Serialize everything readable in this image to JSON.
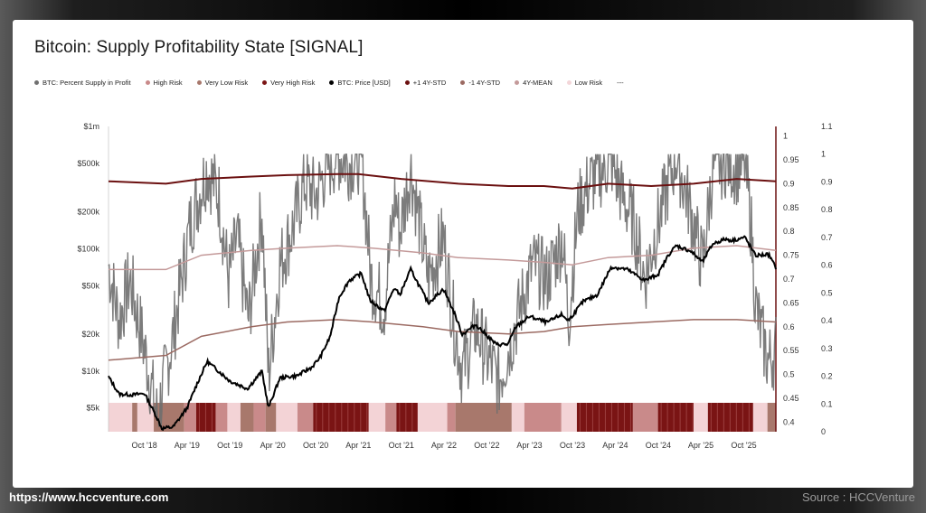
{
  "footer": {
    "website": "https://www.hccventure.com",
    "source": "Source : HCCVenture"
  },
  "chart_data": {
    "type": "line",
    "title": "Bitcoin: Supply Profitability State [SIGNAL]",
    "legend": [
      {
        "name": "BTC: Percent Supply in Profit",
        "color": "#707070"
      },
      {
        "name": "High Risk",
        "color": "#c98a8a"
      },
      {
        "name": "Very Low Risk",
        "color": "#a8786c"
      },
      {
        "name": "Very High Risk",
        "color": "#7a1414"
      },
      {
        "name": "BTC: Price [USD]",
        "color": "#000000"
      },
      {
        "name": "+1 4Y-STD",
        "color": "#6b1010"
      },
      {
        "name": "-1 4Y-STD",
        "color": "#9b6a62"
      },
      {
        "name": "4Y-MEAN",
        "color": "#c49a9a"
      },
      {
        "name": "Low Risk",
        "color": "#f3d6d9"
      },
      {
        "name": "---",
        "color": ""
      }
    ],
    "x_ticks": [
      "Oct '18",
      "Apr '19",
      "Oct '19",
      "Apr '20",
      "Oct '20",
      "Apr '21",
      "Oct '21",
      "Apr '22",
      "Oct '22",
      "Apr '23",
      "Oct '23",
      "Apr '24",
      "Oct '24",
      "Apr '25",
      "Oct '25"
    ],
    "x_range": [
      "2018-05-01",
      "2026-02-15"
    ],
    "y_left": {
      "scale": "log",
      "ticks": [
        "$1m",
        "$500k",
        "$200k",
        "$100k",
        "$50k",
        "$20k",
        "$10k",
        "$5k"
      ],
      "tick_values": [
        1000000,
        500000,
        200000,
        100000,
        50000,
        20000,
        10000,
        5000
      ]
    },
    "y_mid": {
      "ticks": [
        "1",
        "0.95",
        "0.9",
        "0.85",
        "0.8",
        "0.75",
        "0.7",
        "0.65",
        "0.6",
        "0.55",
        "0.5",
        "0.45",
        "0.4"
      ],
      "range": [
        0.38,
        1.02
      ]
    },
    "y_right": {
      "ticks": [
        "1.1",
        "1",
        "0.9",
        "0.8",
        "0.7",
        "0.6",
        "0.5",
        "0.4",
        "0.3",
        "0.2",
        "0.1",
        "0"
      ],
      "range": [
        0,
        1.1
      ]
    },
    "series": [
      {
        "name": "BTC: Price [USD]",
        "axis": "left",
        "x": [
          "2018-05-01",
          "2018-06-15",
          "2018-08-15",
          "2018-10-01",
          "2018-11-20",
          "2018-12-15",
          "2019-02-01",
          "2019-04-01",
          "2019-05-15",
          "2019-06-26",
          "2019-08-01",
          "2019-10-01",
          "2019-12-15",
          "2020-02-15",
          "2020-03-13",
          "2020-05-01",
          "2020-07-15",
          "2020-09-15",
          "2020-10-20",
          "2020-12-01",
          "2021-01-08",
          "2021-02-20",
          "2021-04-14",
          "2021-05-20",
          "2021-07-20",
          "2021-09-01",
          "2021-09-25",
          "2021-11-10",
          "2022-01-24",
          "2022-03-30",
          "2022-05-15",
          "2022-06-18",
          "2022-08-15",
          "2022-11-10",
          "2022-12-31",
          "2023-02-01",
          "2023-04-01",
          "2023-06-15",
          "2023-08-15",
          "2023-09-15",
          "2023-11-15",
          "2024-01-15",
          "2024-03-14",
          "2024-05-20",
          "2024-08-05",
          "2024-10-01",
          "2024-11-15",
          "2024-12-17",
          "2025-02-15",
          "2025-04-08",
          "2025-05-22",
          "2025-07-14",
          "2025-08-15",
          "2025-10-06",
          "2025-11-20",
          "2026-01-15",
          "2026-02-15"
        ],
        "values": [
          9000,
          6500,
          6400,
          6600,
          4300,
          3400,
          3500,
          5000,
          8000,
          12000,
          10500,
          8300,
          7200,
          10000,
          5000,
          8800,
          9200,
          10800,
          13000,
          19000,
          40000,
          55000,
          63000,
          38000,
          31000,
          48000,
          42000,
          68000,
          36000,
          47000,
          30000,
          20000,
          24000,
          16500,
          16600,
          23000,
          28000,
          25000,
          29000,
          26000,
          37000,
          42000,
          71000,
          68000,
          55000,
          62000,
          90000,
          106000,
          96000,
          78000,
          110000,
          120000,
          117000,
          124000,
          88000,
          90000,
          70000
        ]
      },
      {
        "name": "BTC: Percent Supply in Profit",
        "axis": "right",
        "x": [
          "2018-05-01",
          "2018-06-15",
          "2018-08-01",
          "2018-10-01",
          "2018-11-25",
          "2019-02-01",
          "2019-04-15",
          "2019-06-26",
          "2019-08-15",
          "2019-09-25",
          "2019-11-01",
          "2019-12-18",
          "2020-02-15",
          "2020-03-13",
          "2020-05-01",
          "2020-07-01",
          "2020-08-15",
          "2020-10-01",
          "2020-11-15",
          "2021-01-01",
          "2021-02-20",
          "2021-04-14",
          "2021-05-25",
          "2021-07-20",
          "2021-09-05",
          "2021-09-25",
          "2021-11-10",
          "2022-01-24",
          "2022-03-30",
          "2022-05-15",
          "2022-06-18",
          "2022-08-15",
          "2022-10-01",
          "2022-11-21",
          "2023-01-20",
          "2023-03-10",
          "2023-04-15",
          "2023-06-15",
          "2023-08-20",
          "2023-09-15",
          "2023-10-25",
          "2023-12-15",
          "2024-03-14",
          "2024-05-01",
          "2024-06-20",
          "2024-08-05",
          "2024-09-15",
          "2024-11-15",
          "2024-12-17",
          "2025-02-15",
          "2025-04-08",
          "2025-05-22",
          "2025-07-14",
          "2025-09-01",
          "2025-10-06",
          "2025-11-01",
          "2025-11-21",
          "2025-12-15",
          "2026-01-15",
          "2026-02-15"
        ],
        "values": [
          0.6,
          0.4,
          0.55,
          0.3,
          0.05,
          0.35,
          0.75,
          0.95,
          0.85,
          0.55,
          0.7,
          0.4,
          0.8,
          0.2,
          0.6,
          0.75,
          0.9,
          0.85,
          0.95,
          1.0,
          0.97,
          1.0,
          0.55,
          0.45,
          0.85,
          0.72,
          0.95,
          0.55,
          0.7,
          0.38,
          0.22,
          0.38,
          0.27,
          0.18,
          0.35,
          0.5,
          0.6,
          0.55,
          0.7,
          0.4,
          0.8,
          0.9,
          0.98,
          0.85,
          0.75,
          0.55,
          0.7,
          0.9,
          1.0,
          0.8,
          0.6,
          0.95,
          0.98,
          0.95,
          0.97,
          0.75,
          0.45,
          0.35,
          0.25,
          0.3
        ]
      },
      {
        "name": "+1 4Y-STD",
        "axis": "mid",
        "x": [
          "2018-05-01",
          "2019-01-01",
          "2019-06-01",
          "2020-01-01",
          "2020-06-01",
          "2021-01-01",
          "2021-04-01",
          "2021-10-01",
          "2022-06-01",
          "2023-01-01",
          "2023-06-01",
          "2023-10-01",
          "2024-03-01",
          "2024-09-01",
          "2025-03-01",
          "2025-09-01",
          "2026-02-15"
        ],
        "values": [
          0.905,
          0.9,
          0.91,
          0.915,
          0.918,
          0.92,
          0.92,
          0.91,
          0.9,
          0.895,
          0.895,
          0.89,
          0.9,
          0.895,
          0.9,
          0.91,
          0.905
        ]
      },
      {
        "name": "4Y-MEAN",
        "axis": "mid",
        "x": [
          "2018-05-01",
          "2019-01-01",
          "2019-06-01",
          "2020-01-01",
          "2020-06-01",
          "2021-01-01",
          "2021-06-01",
          "2022-01-01",
          "2022-06-01",
          "2023-01-01",
          "2023-06-01",
          "2023-10-01",
          "2024-03-01",
          "2024-09-01",
          "2025-03-01",
          "2025-09-01",
          "2026-02-15"
        ],
        "values": [
          0.72,
          0.72,
          0.75,
          0.76,
          0.765,
          0.77,
          0.765,
          0.755,
          0.745,
          0.74,
          0.735,
          0.73,
          0.745,
          0.75,
          0.765,
          0.77,
          0.76
        ]
      },
      {
        "name": "-1 4Y-STD",
        "axis": "mid",
        "x": [
          "2018-05-01",
          "2019-01-01",
          "2019-06-01",
          "2020-01-01",
          "2020-06-01",
          "2021-01-01",
          "2021-06-01",
          "2022-01-01",
          "2022-06-01",
          "2023-01-01",
          "2023-06-01",
          "2023-10-01",
          "2024-03-01",
          "2024-09-01",
          "2025-03-01",
          "2025-09-01",
          "2026-02-15"
        ],
        "values": [
          0.53,
          0.54,
          0.58,
          0.6,
          0.61,
          0.615,
          0.61,
          0.6,
          0.59,
          0.585,
          0.59,
          0.6,
          0.605,
          0.61,
          0.615,
          0.615,
          0.61
        ]
      }
    ],
    "signal_bands": [
      {
        "start": "2018-05-01",
        "end": "2018-08-10",
        "state": "Low Risk"
      },
      {
        "start": "2018-08-10",
        "end": "2018-09-01",
        "state": "Very Low Risk"
      },
      {
        "start": "2018-09-01",
        "end": "2018-11-10",
        "state": "Low Risk"
      },
      {
        "start": "2018-11-10",
        "end": "2019-03-20",
        "state": "Very Low Risk"
      },
      {
        "start": "2019-03-20",
        "end": "2019-05-10",
        "state": "High Risk"
      },
      {
        "start": "2019-05-10",
        "end": "2019-08-01",
        "state": "Very High Risk"
      },
      {
        "start": "2019-08-01",
        "end": "2019-09-20",
        "state": "High Risk"
      },
      {
        "start": "2019-09-20",
        "end": "2019-11-15",
        "state": "Low Risk"
      },
      {
        "start": "2019-11-15",
        "end": "2020-01-10",
        "state": "Very Low Risk"
      },
      {
        "start": "2020-01-10",
        "end": "2020-03-01",
        "state": "High Risk"
      },
      {
        "start": "2020-03-01",
        "end": "2020-04-15",
        "state": "Very Low Risk"
      },
      {
        "start": "2020-04-15",
        "end": "2020-07-15",
        "state": "Low Risk"
      },
      {
        "start": "2020-07-15",
        "end": "2020-09-20",
        "state": "High Risk"
      },
      {
        "start": "2020-09-20",
        "end": "2021-05-15",
        "state": "Very High Risk"
      },
      {
        "start": "2021-05-15",
        "end": "2021-07-25",
        "state": "Low Risk"
      },
      {
        "start": "2021-07-25",
        "end": "2021-09-10",
        "state": "High Risk"
      },
      {
        "start": "2021-09-10",
        "end": "2021-12-10",
        "state": "Very High Risk"
      },
      {
        "start": "2021-12-10",
        "end": "2022-04-15",
        "state": "Low Risk"
      },
      {
        "start": "2022-04-15",
        "end": "2022-05-20",
        "state": "High Risk"
      },
      {
        "start": "2022-05-20",
        "end": "2023-01-15",
        "state": "Very Low Risk"
      },
      {
        "start": "2023-01-15",
        "end": "2023-03-10",
        "state": "Low Risk"
      },
      {
        "start": "2023-03-10",
        "end": "2023-08-15",
        "state": "High Risk"
      },
      {
        "start": "2023-08-15",
        "end": "2023-10-20",
        "state": "Low Risk"
      },
      {
        "start": "2023-10-20",
        "end": "2024-06-15",
        "state": "Very High Risk"
      },
      {
        "start": "2024-06-15",
        "end": "2024-09-30",
        "state": "High Risk"
      },
      {
        "start": "2024-09-30",
        "end": "2025-03-01",
        "state": "Very High Risk"
      },
      {
        "start": "2025-03-01",
        "end": "2025-05-01",
        "state": "Low Risk"
      },
      {
        "start": "2025-05-01",
        "end": "2025-11-10",
        "state": "Very High Risk"
      },
      {
        "start": "2025-11-10",
        "end": "2026-01-10",
        "state": "Low Risk"
      },
      {
        "start": "2026-01-10",
        "end": "2026-02-15",
        "state": "Very Low Risk"
      }
    ],
    "band_colors": {
      "Low Risk": "#f3d3d6",
      "High Risk": "#c98a8a",
      "Very High Risk": "#7a1414",
      "Very Low Risk": "#a8786c"
    },
    "grid": false,
    "legend_position": "top-left"
  }
}
